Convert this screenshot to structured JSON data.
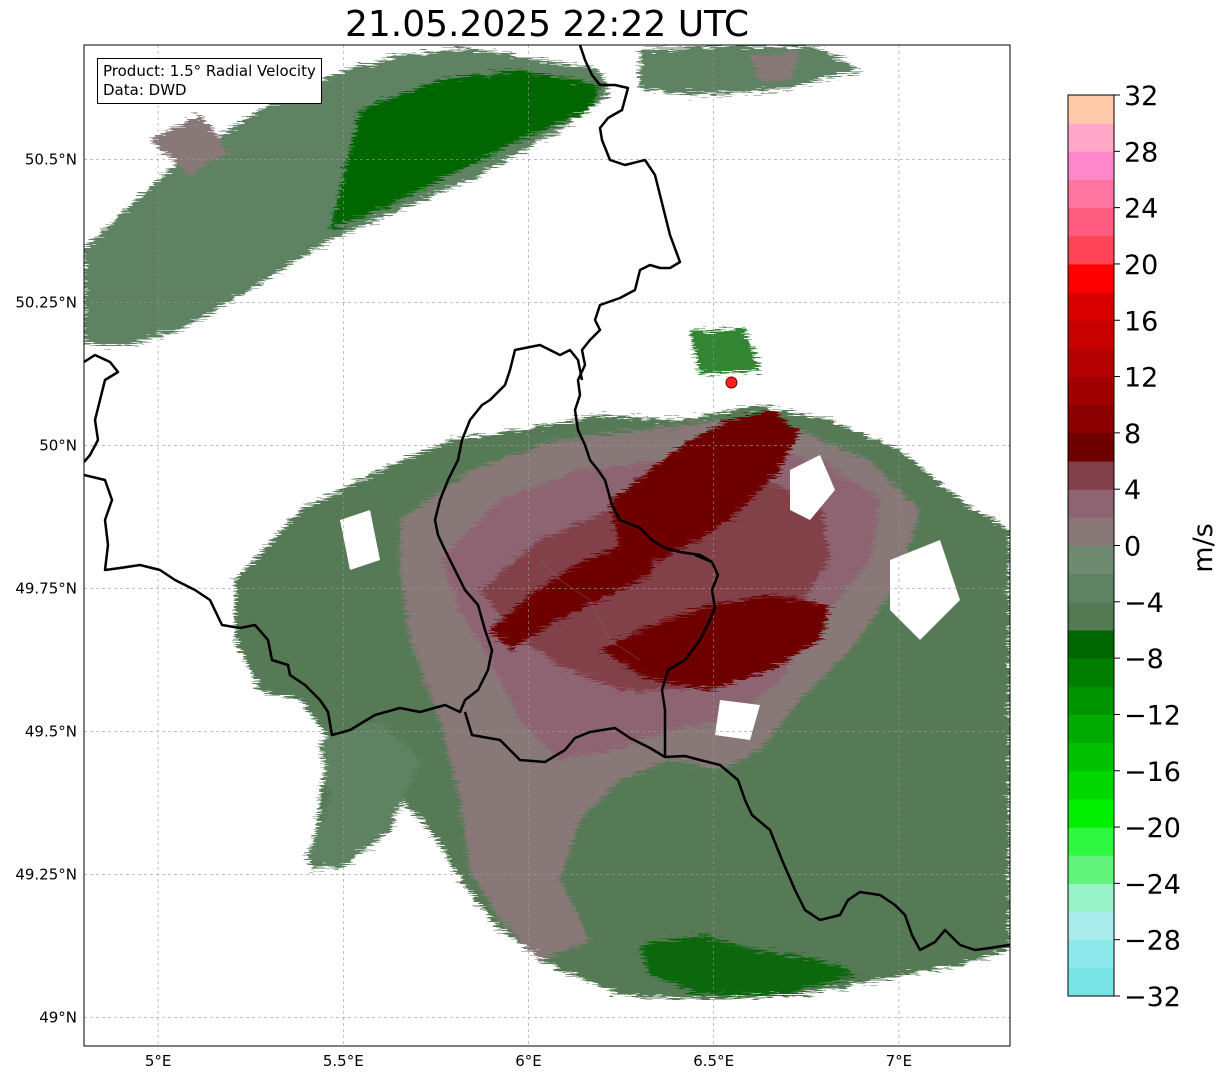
{
  "title": "21.05.2025 22:22 UTC",
  "info": {
    "product": "Product: 1.5° Radial Velocity",
    "source": "Data: DWD"
  },
  "map": {
    "lon_range": [
      4.8,
      7.3
    ],
    "lat_range": [
      48.95,
      50.7
    ],
    "lon_ticks": [
      {
        "value": 5.0,
        "label": "5°E"
      },
      {
        "value": 5.5,
        "label": "5.5°E"
      },
      {
        "value": 6.0,
        "label": "6°E"
      },
      {
        "value": 6.5,
        "label": "6.5°E"
      },
      {
        "value": 7.0,
        "label": "7°E"
      }
    ],
    "lat_ticks": [
      {
        "value": 49.0,
        "label": "49°N"
      },
      {
        "value": 49.25,
        "label": "49.25°N"
      },
      {
        "value": 49.5,
        "label": "49.5°N"
      },
      {
        "value": 49.75,
        "label": "49.75°N"
      },
      {
        "value": 50.0,
        "label": "50°N"
      },
      {
        "value": 50.25,
        "label": "50.25°N"
      },
      {
        "value": 50.5,
        "label": "50.5°N"
      }
    ],
    "gridlines": true,
    "radar_site": {
      "lon": 6.548,
      "lat": 50.11,
      "color": "#ff2020"
    }
  },
  "colorbar": {
    "label": "m/s",
    "range": [
      -32,
      32
    ],
    "ticks": [
      "−32",
      "−28",
      "−24",
      "−20",
      "−16",
      "−12",
      "−8",
      "−4",
      "0",
      "4",
      "8",
      "12",
      "16",
      "20",
      "24",
      "28",
      "32"
    ],
    "colors": [
      "#78e4e6",
      "#8ce8ea",
      "#a8ecee",
      "#98f4c8",
      "#62f47a",
      "#2ef840",
      "#00f000",
      "#00d600",
      "#00c000",
      "#00aa00",
      "#009400",
      "#007e00",
      "#006600",
      "#547a54",
      "#5e8262",
      "#6e8a70",
      "#887878",
      "#8e6472",
      "#82404a",
      "#6e0000",
      "#8a0000",
      "#a00000",
      "#b40000",
      "#c80000",
      "#da0000",
      "#ff0000",
      "#ff4458",
      "#ff5c80",
      "#ff74a0",
      "#ff88cc",
      "#ffa8c8",
      "#ffcaaa"
    ]
  }
}
